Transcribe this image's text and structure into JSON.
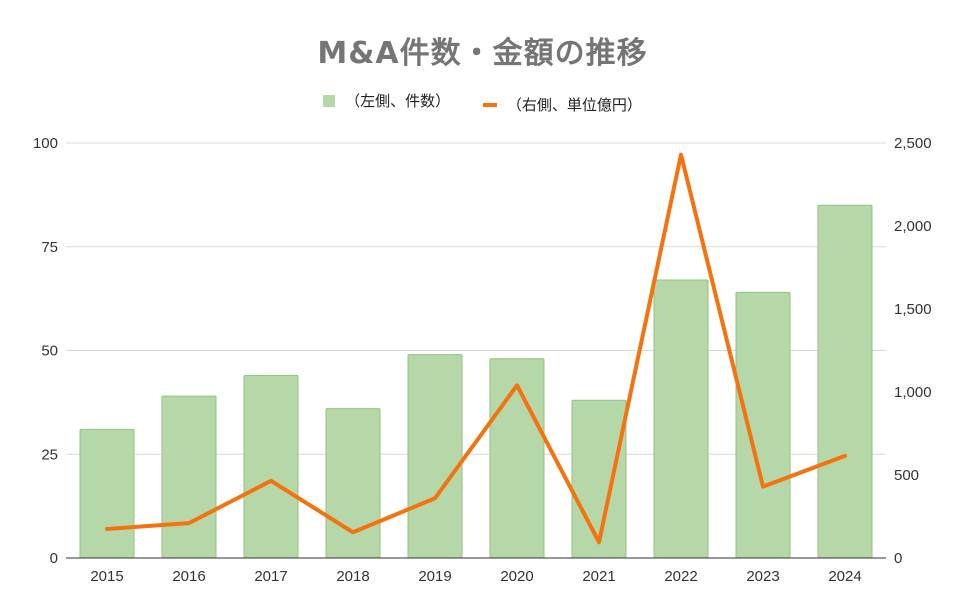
{
  "chart_data": {
    "type": "bar+line",
    "title": "M&A件数・金額の推移",
    "categories": [
      "2015",
      "2016",
      "2017",
      "2018",
      "2019",
      "2020",
      "2021",
      "2022",
      "2023",
      "2024"
    ],
    "series": [
      {
        "name": "（左側、件数）",
        "type": "bar",
        "axis": "left",
        "values": [
          31,
          39,
          44,
          36,
          49,
          48,
          38,
          67,
          64,
          85
        ],
        "color": "#b6d7a8"
      },
      {
        "name": "（右側、単位億円）",
        "type": "line",
        "axis": "right",
        "values": [
          175,
          210,
          465,
          155,
          360,
          1040,
          95,
          2430,
          430,
          615
        ],
        "color": "#f4730f"
      }
    ],
    "left_axis": {
      "ylim": [
        0,
        100
      ],
      "ticks": [
        "0",
        "25",
        "50",
        "75",
        "100"
      ]
    },
    "right_axis": {
      "ylim": [
        0,
        2500
      ],
      "ticks": [
        "0",
        "500",
        "1,000",
        "1,500",
        "2,000",
        "2,500"
      ]
    },
    "grid": true,
    "legend_position": "top-center"
  }
}
